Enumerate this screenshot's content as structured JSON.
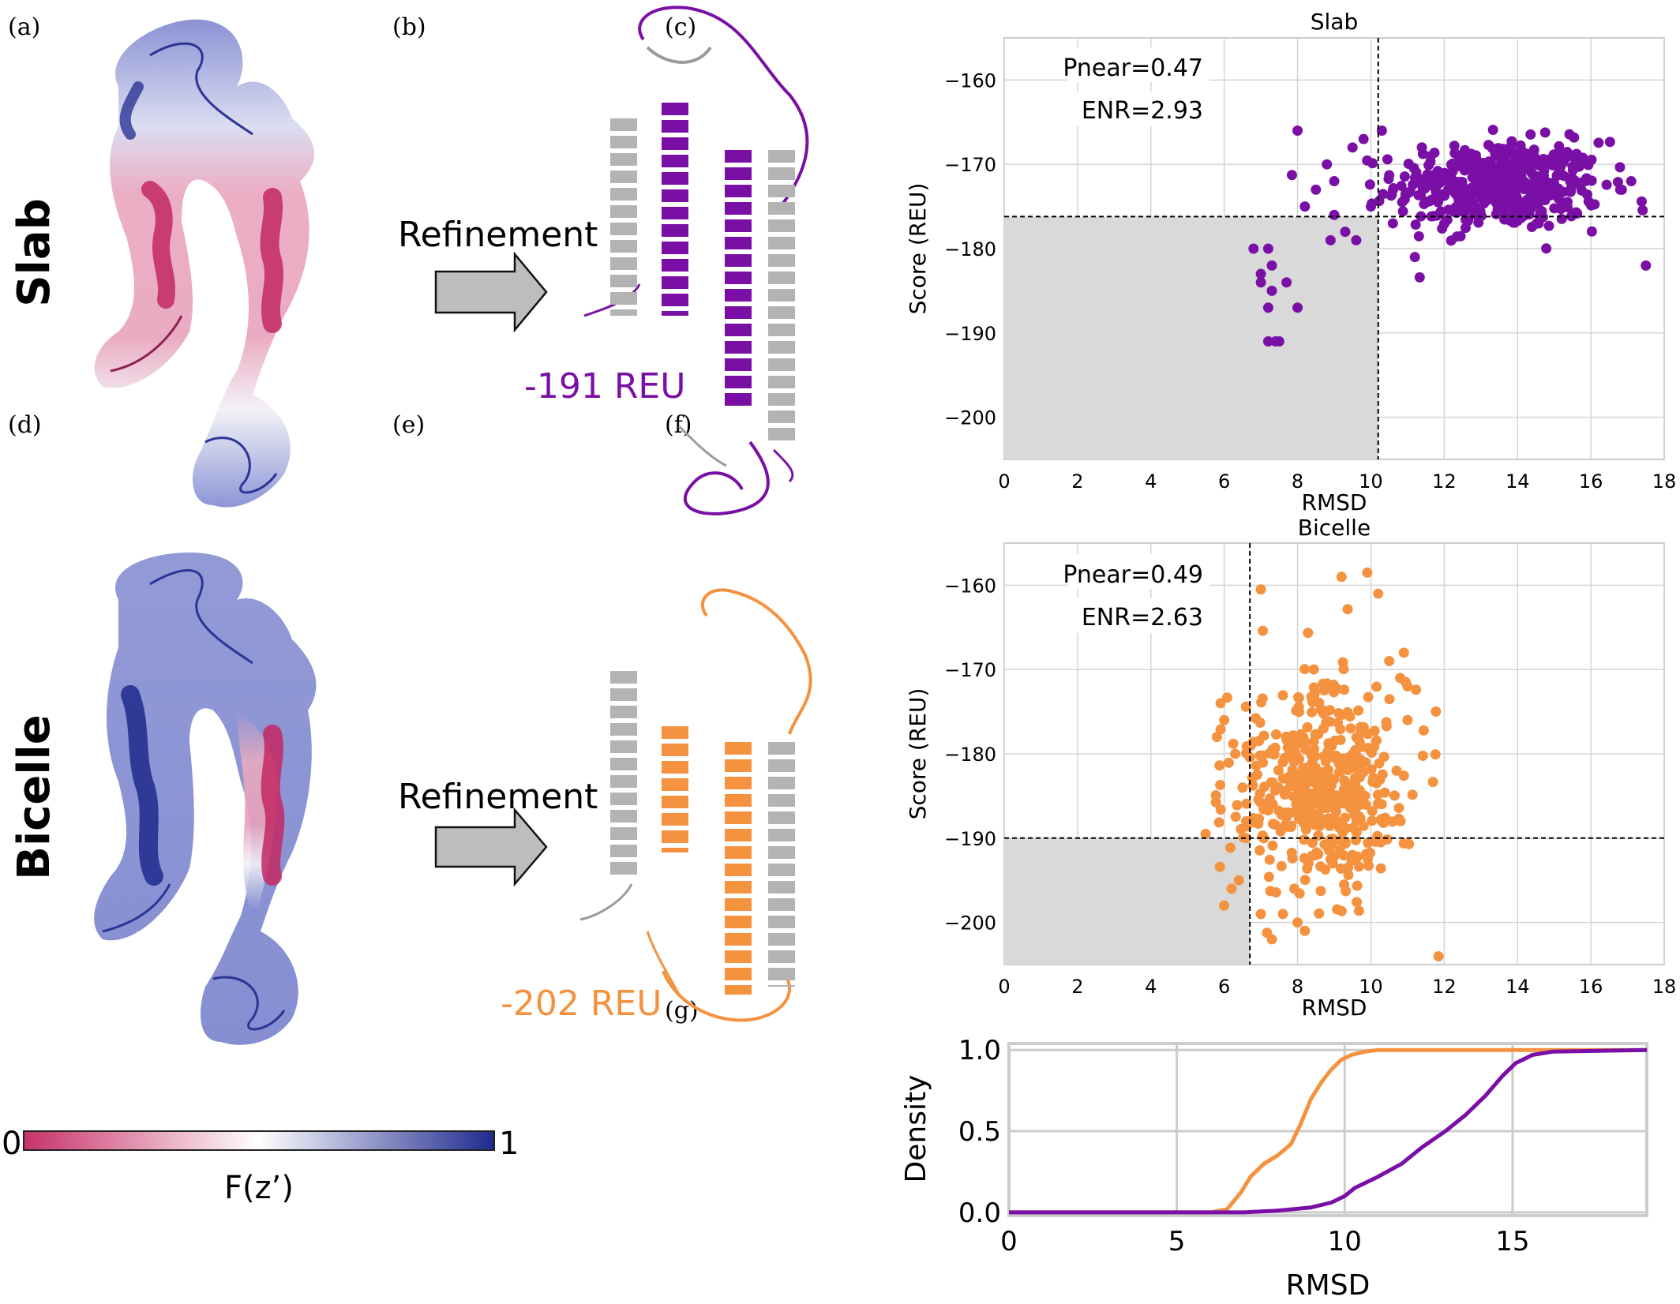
{
  "panel_letters": [
    "(a)",
    "(b)",
    "(c)",
    "(d)",
    "(e)",
    "(f)",
    "(g)"
  ],
  "row_labels": {
    "top": "Slab",
    "bottom": "Bicelle"
  },
  "arrows": {
    "top_label": "Refinement",
    "bottom_label": "Refinement"
  },
  "structure_scores": {
    "slab": "-191 REU",
    "bicelle": "-202 REU"
  },
  "colorbar": {
    "min_label": "0",
    "max_label": "1",
    "title": "F(z’)"
  },
  "colors": {
    "slab": "#7a0fa6",
    "bicelle": "#f4923f",
    "structure_gray": "#b0b0b0",
    "low_Fz": "#c8326a",
    "high_Fz": "#1f2a8f",
    "shade": "#d9d9d9"
  },
  "chart_data": [
    {
      "id": "c",
      "type": "scatter",
      "title": "Slab",
      "xlabel": "RMSD",
      "ylabel": "Score (REU)",
      "xlim": [
        0,
        18
      ],
      "ylim": [
        -205,
        -155
      ],
      "xticks": [
        0,
        2,
        4,
        6,
        8,
        10,
        12,
        14,
        16,
        18
      ],
      "yticks": [
        -160,
        -170,
        -180,
        -190,
        -200
      ],
      "grid": true,
      "annotations": [
        "Pnear=0.47",
        "ENR=2.93"
      ],
      "threshold_x": 10.2,
      "threshold_y": -176.2,
      "color": "#7a0fa6",
      "cluster": {
        "x_center": 13.5,
        "x_spread": 1.4,
        "y_center": -172.5,
        "y_spread": 2.6,
        "n": 460
      },
      "points": [
        {
          "x": 6.8,
          "y": -180
        },
        {
          "x": 7.0,
          "y": -183
        },
        {
          "x": 7.2,
          "y": -180
        },
        {
          "x": 7.3,
          "y": -182
        },
        {
          "x": 7.0,
          "y": -184
        },
        {
          "x": 7.3,
          "y": -185
        },
        {
          "x": 7.7,
          "y": -184
        },
        {
          "x": 7.2,
          "y": -187
        },
        {
          "x": 8.0,
          "y": -187
        },
        {
          "x": 7.2,
          "y": -191
        },
        {
          "x": 7.4,
          "y": -191
        },
        {
          "x": 7.5,
          "y": -191
        },
        {
          "x": 8.0,
          "y": -166
        },
        {
          "x": 9.5,
          "y": -168
        },
        {
          "x": 9.8,
          "y": -167
        },
        {
          "x": 10.3,
          "y": -166
        },
        {
          "x": 17.5,
          "y": -182
        },
        {
          "x": 9.0,
          "y": -176
        },
        {
          "x": 9.3,
          "y": -178
        },
        {
          "x": 8.9,
          "y": -179
        },
        {
          "x": 9.6,
          "y": -179
        },
        {
          "x": 10.0,
          "y": -175
        },
        {
          "x": 10.6,
          "y": -177
        },
        {
          "x": 11.2,
          "y": -181
        },
        {
          "x": 8.5,
          "y": -173
        },
        {
          "x": 9.0,
          "y": -172
        },
        {
          "x": 8.2,
          "y": -175
        },
        {
          "x": 8.8,
          "y": -170
        },
        {
          "x": 16.8,
          "y": -173
        },
        {
          "x": 17.1,
          "y": -172
        }
      ]
    },
    {
      "id": "f",
      "type": "scatter",
      "title": "Bicelle",
      "xlabel": "RMSD",
      "ylabel": "Score (REU)",
      "xlim": [
        0,
        18
      ],
      "ylim": [
        -205,
        -155
      ],
      "xticks": [
        0,
        2,
        4,
        6,
        8,
        10,
        12,
        14,
        16,
        18
      ],
      "yticks": [
        -160,
        -170,
        -180,
        -190,
        -200
      ],
      "grid": true,
      "annotations": [
        "Pnear=0.49",
        "ENR=2.63"
      ],
      "threshold_x": 6.7,
      "threshold_y": -190,
      "color": "#f4923f",
      "cluster": {
        "x_center": 8.6,
        "x_spread": 1.2,
        "y_center": -184,
        "y_spread": 6,
        "n": 460
      },
      "points": [
        {
          "x": 7.0,
          "y": -160.5
        },
        {
          "x": 9.2,
          "y": -159
        },
        {
          "x": 9.9,
          "y": -158.5
        },
        {
          "x": 10.2,
          "y": -161
        },
        {
          "x": 10.9,
          "y": -168
        },
        {
          "x": 10.8,
          "y": -171
        },
        {
          "x": 10.5,
          "y": -169
        },
        {
          "x": 11.0,
          "y": -172
        },
        {
          "x": 5.9,
          "y": -174
        },
        {
          "x": 6.0,
          "y": -176
        },
        {
          "x": 5.8,
          "y": -178
        },
        {
          "x": 6.3,
          "y": -180
        },
        {
          "x": 6.5,
          "y": -184
        },
        {
          "x": 6.6,
          "y": -188
        },
        {
          "x": 6.2,
          "y": -196
        },
        {
          "x": 6.0,
          "y": -198
        },
        {
          "x": 6.4,
          "y": -195
        },
        {
          "x": 6.6,
          "y": -190
        },
        {
          "x": 7.3,
          "y": -202
        },
        {
          "x": 8.2,
          "y": -201
        },
        {
          "x": 8.0,
          "y": -200
        },
        {
          "x": 7.0,
          "y": -199
        },
        {
          "x": 7.6,
          "y": -199
        },
        {
          "x": 9.5,
          "y": -192
        },
        {
          "x": 10.3,
          "y": -188
        },
        {
          "x": 10.7,
          "y": -182
        },
        {
          "x": 11.0,
          "y": -176
        }
      ]
    },
    {
      "id": "g",
      "type": "line",
      "xlabel": "RMSD",
      "ylabel": "Density",
      "xlim": [
        0,
        19
      ],
      "ylim": [
        -0.02,
        1.04
      ],
      "xticks": [
        0,
        5,
        10,
        15
      ],
      "yticks": [
        0.0,
        0.5,
        1.0
      ],
      "ytick_labels": [
        "0.0",
        "0.5",
        "1.0"
      ],
      "grid": true,
      "series": [
        {
          "color": "#f4923f",
          "x": [
            0,
            6.0,
            6.5,
            6.9,
            7.2,
            7.6,
            8.0,
            8.4,
            8.7,
            9.0,
            9.3,
            9.6,
            9.9,
            10.2,
            10.6,
            11.0,
            19
          ],
          "y": [
            0,
            0,
            0.02,
            0.12,
            0.22,
            0.3,
            0.35,
            0.42,
            0.55,
            0.7,
            0.8,
            0.88,
            0.94,
            0.97,
            0.99,
            1.0,
            1.0
          ]
        },
        {
          "color": "#7a0fa6",
          "x": [
            0,
            6.0,
            7.0,
            8.0,
            9.0,
            9.6,
            10.0,
            10.3,
            11.0,
            11.7,
            12.3,
            13.0,
            13.6,
            14.2,
            14.7,
            15.1,
            15.6,
            16.2,
            19
          ],
          "y": [
            0,
            0,
            0.0,
            0.01,
            0.03,
            0.06,
            0.1,
            0.15,
            0.22,
            0.3,
            0.4,
            0.5,
            0.6,
            0.72,
            0.84,
            0.92,
            0.97,
            0.99,
            1.0
          ]
        }
      ]
    }
  ]
}
